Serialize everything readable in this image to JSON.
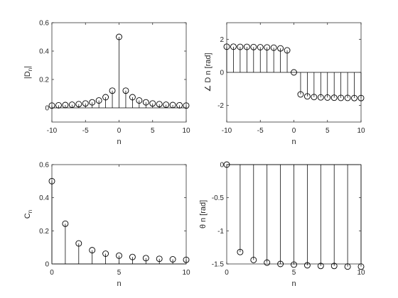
{
  "chart_data": [
    {
      "type": "stem",
      "ylabel_main": "|D",
      "ylabel_sub": "n",
      "ylabel_suffix": "|",
      "xlabel": "n",
      "xlim": [
        -10,
        10
      ],
      "ylim": [
        -0.1,
        0.6
      ],
      "xticks": [
        -10,
        -5,
        0,
        5,
        10
      ],
      "yticks": [
        0,
        0.2,
        0.4,
        0.6
      ],
      "xtick_labels": [
        "-10",
        "-5",
        "0",
        "5",
        "10"
      ],
      "ytick_labels": [
        "0",
        "0.2",
        "0.4",
        "0.6"
      ],
      "baseline": 0,
      "x": [
        -10,
        -9,
        -8,
        -7,
        -6,
        -5,
        -4,
        -3,
        -2,
        -1,
        0,
        1,
        2,
        3,
        4,
        5,
        6,
        7,
        8,
        9,
        10
      ],
      "y": [
        0.016,
        0.018,
        0.02,
        0.022,
        0.026,
        0.031,
        0.039,
        0.052,
        0.075,
        0.121,
        0.5,
        0.121,
        0.075,
        0.052,
        0.039,
        0.031,
        0.026,
        0.022,
        0.02,
        0.018,
        0.016
      ]
    },
    {
      "type": "stem",
      "ylabel": "∠ D n [rad]",
      "xlabel": "n",
      "xlim": [
        -10,
        10
      ],
      "ylim": [
        -3,
        3
      ],
      "xticks": [
        -10,
        -5,
        0,
        5,
        10
      ],
      "yticks": [
        -2,
        0,
        2
      ],
      "xtick_labels": [
        "-10",
        "-5",
        "0",
        "5",
        "10"
      ],
      "ytick_labels": [
        "-2",
        "0",
        "2"
      ],
      "baseline": 0,
      "x": [
        -10,
        -9,
        -8,
        -7,
        -6,
        -5,
        -4,
        -3,
        -2,
        -1,
        0,
        1,
        2,
        3,
        4,
        5,
        6,
        7,
        8,
        9,
        10
      ],
      "y": [
        1.55,
        1.55,
        1.54,
        1.54,
        1.53,
        1.52,
        1.51,
        1.49,
        1.45,
        1.33,
        0,
        -1.33,
        -1.45,
        -1.49,
        -1.51,
        -1.52,
        -1.53,
        -1.54,
        -1.54,
        -1.55,
        -1.55
      ]
    },
    {
      "type": "stem",
      "ylabel_main": "C",
      "ylabel_sub": "n",
      "xlabel": "n",
      "xlim": [
        0,
        10
      ],
      "ylim": [
        0,
        0.6
      ],
      "xticks": [
        0,
        5,
        10
      ],
      "yticks": [
        0,
        0.2,
        0.4,
        0.6
      ],
      "xtick_labels": [
        "0",
        "5",
        "10"
      ],
      "ytick_labels": [
        "0",
        "0.2",
        "0.4",
        "0.6"
      ],
      "baseline": 0,
      "x": [
        0,
        1,
        2,
        3,
        4,
        5,
        6,
        7,
        8,
        9,
        10
      ],
      "y": [
        0.5,
        0.243,
        0.124,
        0.083,
        0.062,
        0.05,
        0.042,
        0.035,
        0.031,
        0.028,
        0.025
      ]
    },
    {
      "type": "stem",
      "ylabel": "θ n [rad]",
      "xlabel": "n",
      "xlim": [
        0,
        10
      ],
      "ylim": [
        -1.5,
        0
      ],
      "xticks": [
        0,
        5,
        10
      ],
      "yticks": [
        -1.5,
        -1,
        -0.5,
        0
      ],
      "xtick_labels": [
        "0",
        "5",
        "10"
      ],
      "ytick_labels": [
        "-1.5",
        "-1",
        "-0.5",
        "0"
      ],
      "baseline": 0,
      "x": [
        0,
        1,
        2,
        3,
        4,
        5,
        6,
        7,
        8,
        9,
        10
      ],
      "y": [
        0,
        -1.32,
        -1.44,
        -1.48,
        -1.5,
        -1.51,
        -1.52,
        -1.53,
        -1.53,
        -1.54,
        -1.54
      ]
    }
  ]
}
